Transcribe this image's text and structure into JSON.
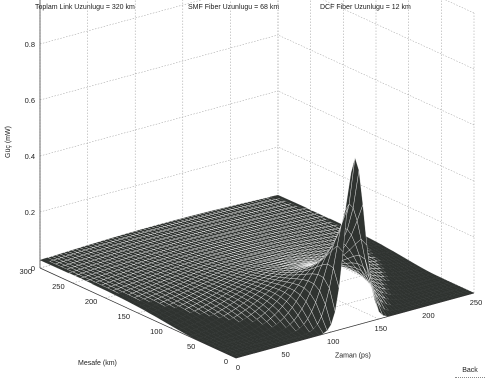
{
  "header": {
    "total_length": "Toplam Link Uzunlugu = 320 km",
    "smf_length": "SMF Fiber Uzunlugu = 68 km",
    "dcf_length": "DCF Fiber Uzunlugu = 12 km"
  },
  "back_label": "Back",
  "chart_data": {
    "type": "surface",
    "title": "",
    "zlabel": "Güç (mW)",
    "xlabel": "Zaman (ps)",
    "ylabel": "Mesafe (km)",
    "zlim": [
      0,
      1
    ],
    "xlim": [
      0,
      250
    ],
    "ylim": [
      0,
      300
    ],
    "z_ticks": [
      "0",
      "0.2",
      "0.4",
      "0.6",
      "0.8",
      "1"
    ],
    "x_ticks": [
      "0",
      "50",
      "100",
      "150",
      "200",
      "250"
    ],
    "y_ticks": [
      "0",
      "50",
      "100",
      "150",
      "200",
      "250",
      "300"
    ],
    "grid": true,
    "colors": {
      "surface": "#2f3330",
      "edge": "#ffffff",
      "grid": "#9a9a9a"
    },
    "pulse": {
      "peak_power": 0.6,
      "peak_time": 125,
      "peak_distance": 0,
      "width_ps": 20
    }
  }
}
